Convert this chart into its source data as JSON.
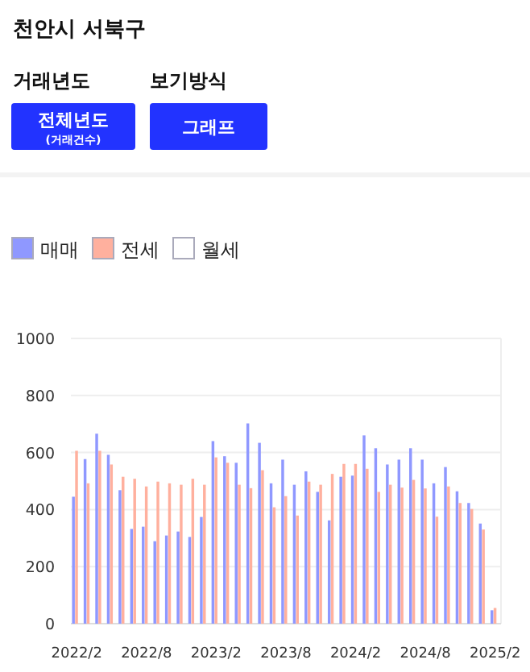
{
  "chart_data": {
    "type": "bar",
    "title": "천안시 서북구",
    "annotations": [
      "거래년도",
      "보기방식",
      "전체년도",
      "(거래건수)",
      "그래프"
    ],
    "categories": [
      "2022/2",
      null,
      null,
      null,
      null,
      null,
      "2022/8",
      null,
      null,
      null,
      null,
      null,
      "2023/2",
      null,
      null,
      null,
      null,
      null,
      "2023/8",
      null,
      null,
      null,
      null,
      null,
      "2024/2",
      null,
      null,
      null,
      null,
      null,
      "2024/8",
      null,
      null,
      null,
      null,
      null,
      "2025/2"
    ],
    "series": [
      {
        "name": "매매",
        "color": "#8f98ff",
        "values": [
          445,
          577,
          666,
          592,
          468,
          332,
          340,
          289,
          309,
          323,
          304,
          374,
          640,
          587,
          564,
          702,
          634,
          492,
          575,
          487,
          534,
          462,
          362,
          515,
          519,
          660,
          615,
          558,
          575,
          615,
          575,
          492,
          549,
          464,
          423,
          351,
          47
        ]
      },
      {
        "name": "전세",
        "color": "#ffb09e",
        "values": [
          606,
          492,
          606,
          558,
          515,
          508,
          481,
          498,
          492,
          487,
          508,
          487,
          583,
          564,
          487,
          475,
          538,
          408,
          447,
          379,
          498,
          487,
          525,
          560,
          560,
          543,
          462,
          487,
          477,
          504,
          474,
          375,
          481,
          423,
          402,
          330,
          55
        ]
      },
      {
        "name": "월세",
        "color": "#ffffff",
        "values": [
          null,
          null,
          null,
          null,
          null,
          null,
          null,
          null,
          null,
          null,
          null,
          null,
          null,
          null,
          null,
          null,
          null,
          null,
          null,
          null,
          null,
          null,
          null,
          null,
          null,
          null,
          null,
          null,
          null,
          null,
          null,
          null,
          null,
          null,
          null,
          null,
          null
        ]
      }
    ],
    "ylim": [
      0,
      1000
    ],
    "yticks": [
      0,
      200,
      400,
      600,
      800,
      1000
    ],
    "grid": "y",
    "legend": "top left"
  }
}
